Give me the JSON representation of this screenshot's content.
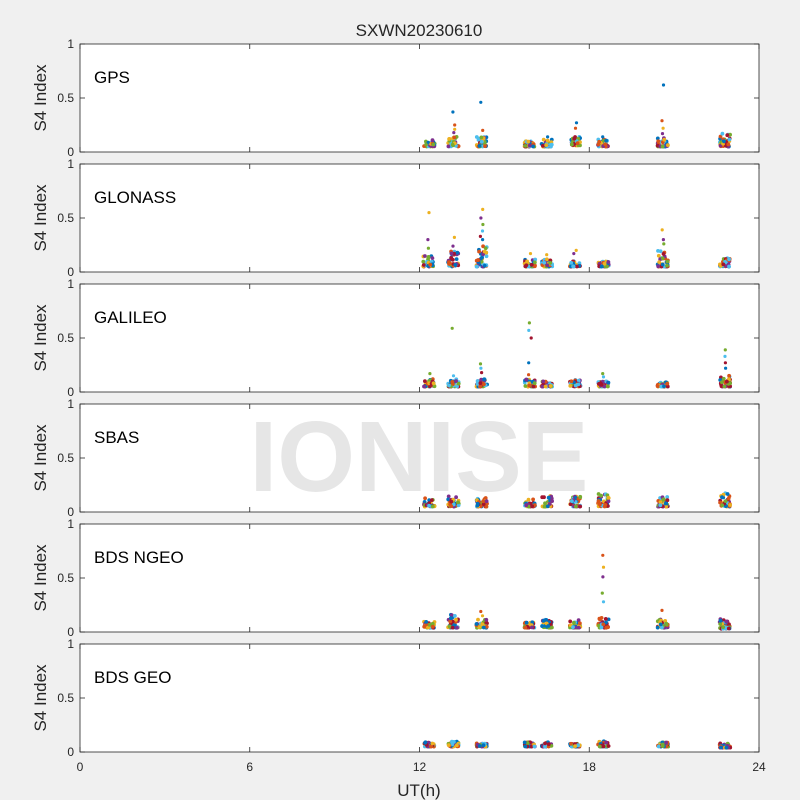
{
  "figure": {
    "title": "SXWN20230610",
    "xlabel": "UT(h)",
    "watermark": "IONISE",
    "background": "#f0f0f0",
    "panel_background": "#ffffff"
  },
  "chart_data": [
    {
      "type": "scatter",
      "label": "GPS",
      "ylabel": "S4 Index",
      "xlim": [
        0,
        24
      ],
      "ylim": [
        0,
        1
      ],
      "xticks": [
        0,
        6,
        12,
        18,
        24
      ],
      "yticks": [
        0,
        0.5,
        1
      ],
      "clusters": [
        {
          "x": 12.35,
          "low": 0.05,
          "high": 0.11,
          "spikes": [
            0.09
          ]
        },
        {
          "x": 13.2,
          "low": 0.05,
          "high": 0.14,
          "spikes": [
            0.37,
            0.25,
            0.21,
            0.18
          ]
        },
        {
          "x": 14.2,
          "low": 0.05,
          "high": 0.14,
          "spikes": [
            0.46,
            0.2
          ]
        },
        {
          "x": 15.9,
          "low": 0.05,
          "high": 0.1,
          "spikes": []
        },
        {
          "x": 16.5,
          "low": 0.05,
          "high": 0.12,
          "spikes": [
            0.14
          ]
        },
        {
          "x": 17.5,
          "low": 0.06,
          "high": 0.14,
          "spikes": [
            0.27,
            0.22
          ]
        },
        {
          "x": 18.5,
          "low": 0.05,
          "high": 0.12,
          "spikes": [
            0.14
          ]
        },
        {
          "x": 20.6,
          "low": 0.05,
          "high": 0.14,
          "spikes": [
            0.62,
            0.29,
            0.22,
            0.17
          ]
        },
        {
          "x": 22.8,
          "low": 0.05,
          "high": 0.17,
          "spikes": []
        }
      ]
    },
    {
      "type": "scatter",
      "label": "GLONASS",
      "ylabel": "S4 Index",
      "xlim": [
        0,
        24
      ],
      "ylim": [
        0,
        1
      ],
      "xticks": [
        0,
        6,
        12,
        18,
        24
      ],
      "yticks": [
        0,
        0.5,
        1
      ],
      "clusters": [
        {
          "x": 12.3,
          "low": 0.05,
          "high": 0.16,
          "spikes": [
            0.55,
            0.3,
            0.22
          ]
        },
        {
          "x": 13.2,
          "low": 0.05,
          "high": 0.2,
          "spikes": [
            0.32,
            0.24
          ]
        },
        {
          "x": 14.2,
          "low": 0.05,
          "high": 0.25,
          "spikes": [
            0.58,
            0.5,
            0.44,
            0.38,
            0.33,
            0.3
          ]
        },
        {
          "x": 15.9,
          "low": 0.05,
          "high": 0.12,
          "spikes": [
            0.17
          ]
        },
        {
          "x": 16.5,
          "low": 0.05,
          "high": 0.12,
          "spikes": [
            0.16
          ]
        },
        {
          "x": 17.5,
          "low": 0.05,
          "high": 0.1,
          "spikes": [
            0.2,
            0.17
          ]
        },
        {
          "x": 18.5,
          "low": 0.05,
          "high": 0.1,
          "spikes": []
        },
        {
          "x": 20.6,
          "low": 0.05,
          "high": 0.2,
          "spikes": [
            0.39,
            0.3,
            0.26
          ]
        },
        {
          "x": 22.8,
          "low": 0.05,
          "high": 0.13,
          "spikes": []
        }
      ]
    },
    {
      "type": "scatter",
      "label": "GALILEO",
      "ylabel": "S4 Index",
      "xlim": [
        0,
        24
      ],
      "ylim": [
        0,
        1
      ],
      "xticks": [
        0,
        6,
        12,
        18,
        24
      ],
      "yticks": [
        0,
        0.5,
        1
      ],
      "clusters": [
        {
          "x": 12.35,
          "low": 0.05,
          "high": 0.12,
          "spikes": [
            0.17
          ]
        },
        {
          "x": 13.2,
          "low": 0.05,
          "high": 0.12,
          "spikes": [
            0.59,
            0.15
          ]
        },
        {
          "x": 14.2,
          "low": 0.05,
          "high": 0.12,
          "spikes": [
            0.26,
            0.22,
            0.18
          ]
        },
        {
          "x": 15.9,
          "low": 0.05,
          "high": 0.12,
          "spikes": [
            0.64,
            0.57,
            0.5,
            0.27,
            0.16
          ]
        },
        {
          "x": 16.5,
          "low": 0.05,
          "high": 0.1,
          "spikes": []
        },
        {
          "x": 17.5,
          "low": 0.05,
          "high": 0.11,
          "spikes": []
        },
        {
          "x": 18.5,
          "low": 0.05,
          "high": 0.1,
          "spikes": [
            0.17,
            0.14
          ]
        },
        {
          "x": 20.6,
          "low": 0.05,
          "high": 0.09,
          "spikes": []
        },
        {
          "x": 22.8,
          "low": 0.05,
          "high": 0.15,
          "spikes": [
            0.39,
            0.33,
            0.27,
            0.22
          ]
        }
      ]
    },
    {
      "type": "scatter",
      "label": "SBAS",
      "ylabel": "S4 Index",
      "xlim": [
        0,
        24
      ],
      "ylim": [
        0,
        1
      ],
      "xticks": [
        0,
        6,
        12,
        18,
        24
      ],
      "yticks": [
        0,
        0.5,
        1
      ],
      "clusters": [
        {
          "x": 12.35,
          "low": 0.05,
          "high": 0.13,
          "spikes": []
        },
        {
          "x": 13.2,
          "low": 0.05,
          "high": 0.15,
          "spikes": []
        },
        {
          "x": 14.2,
          "low": 0.05,
          "high": 0.13,
          "spikes": []
        },
        {
          "x": 15.9,
          "low": 0.05,
          "high": 0.13,
          "spikes": []
        },
        {
          "x": 16.5,
          "low": 0.05,
          "high": 0.16,
          "spikes": []
        },
        {
          "x": 17.5,
          "low": 0.05,
          "high": 0.15,
          "spikes": []
        },
        {
          "x": 18.5,
          "low": 0.05,
          "high": 0.17,
          "spikes": []
        },
        {
          "x": 20.6,
          "low": 0.05,
          "high": 0.14,
          "spikes": []
        },
        {
          "x": 22.8,
          "low": 0.05,
          "high": 0.18,
          "spikes": []
        }
      ]
    },
    {
      "type": "scatter",
      "label": "BDS NGEO",
      "ylabel": "S4 Index",
      "xlim": [
        0,
        24
      ],
      "ylim": [
        0,
        1
      ],
      "xticks": [
        0,
        6,
        12,
        18,
        24
      ],
      "yticks": [
        0,
        0.5,
        1
      ],
      "clusters": [
        {
          "x": 12.35,
          "low": 0.04,
          "high": 0.1,
          "spikes": []
        },
        {
          "x": 13.2,
          "low": 0.04,
          "high": 0.16,
          "spikes": []
        },
        {
          "x": 14.2,
          "low": 0.04,
          "high": 0.12,
          "spikes": [
            0.19,
            0.15
          ]
        },
        {
          "x": 15.9,
          "low": 0.04,
          "high": 0.09,
          "spikes": []
        },
        {
          "x": 16.5,
          "low": 0.04,
          "high": 0.12,
          "spikes": []
        },
        {
          "x": 17.5,
          "low": 0.04,
          "high": 0.11,
          "spikes": []
        },
        {
          "x": 18.5,
          "low": 0.04,
          "high": 0.14,
          "spikes": [
            0.71,
            0.6,
            0.51,
            0.36,
            0.28
          ]
        },
        {
          "x": 20.6,
          "low": 0.04,
          "high": 0.12,
          "spikes": [
            0.2
          ]
        },
        {
          "x": 22.8,
          "low": 0.03,
          "high": 0.12,
          "spikes": []
        }
      ]
    },
    {
      "type": "scatter",
      "label": "BDS GEO",
      "ylabel": "S4 Index",
      "xlim": [
        0,
        24
      ],
      "ylim": [
        0,
        1
      ],
      "xticks": [
        0,
        6,
        12,
        18,
        24
      ],
      "yticks": [
        0,
        0.5,
        1
      ],
      "clusters": [
        {
          "x": 12.35,
          "low": 0.05,
          "high": 0.09,
          "spikes": []
        },
        {
          "x": 13.2,
          "low": 0.05,
          "high": 0.1,
          "spikes": []
        },
        {
          "x": 14.2,
          "low": 0.05,
          "high": 0.08,
          "spikes": []
        },
        {
          "x": 15.9,
          "low": 0.05,
          "high": 0.09,
          "spikes": []
        },
        {
          "x": 16.5,
          "low": 0.05,
          "high": 0.09,
          "spikes": []
        },
        {
          "x": 17.5,
          "low": 0.05,
          "high": 0.08,
          "spikes": []
        },
        {
          "x": 18.5,
          "low": 0.05,
          "high": 0.1,
          "spikes": []
        },
        {
          "x": 20.6,
          "low": 0.05,
          "high": 0.09,
          "spikes": []
        },
        {
          "x": 22.8,
          "low": 0.04,
          "high": 0.08,
          "spikes": []
        }
      ]
    }
  ],
  "marker_colors": [
    "#0072BD",
    "#D95319",
    "#EDB120",
    "#7E2F8E",
    "#77AC30",
    "#4DBEEE",
    "#A2142F"
  ]
}
